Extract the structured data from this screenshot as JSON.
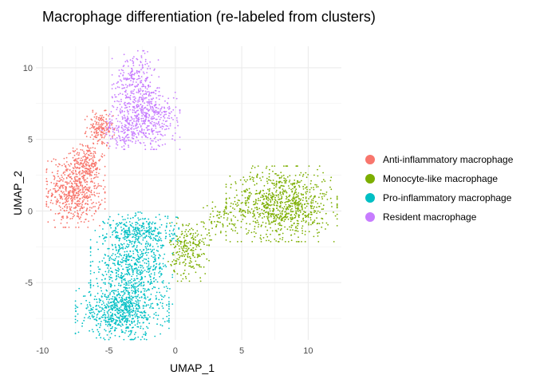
{
  "chart_data": {
    "type": "scatter",
    "title": "Macrophage differentiation (re-labeled from clusters)",
    "xlabel": "UMAP_1",
    "ylabel": "UMAP_2",
    "xlim": [
      -10.5,
      12.5
    ],
    "ylim": [
      -9,
      11.5
    ],
    "x_ticks": [
      -10,
      -5,
      0,
      5,
      10
    ],
    "y_ticks": [
      -5,
      0,
      5,
      10
    ],
    "grid": true,
    "legend_position": "right",
    "series": [
      {
        "name": "Anti-inflammatory macrophage",
        "color": "#F8766D",
        "clusters": [
          {
            "center": [
              -7.5,
              1.5
            ],
            "spread": [
              1.0,
              1.2
            ],
            "n": 650
          },
          {
            "center": [
              -5.7,
              5.7
            ],
            "spread": [
              0.5,
              0.6
            ],
            "n": 170
          },
          {
            "center": [
              -6.6,
              3.6
            ],
            "spread": [
              0.5,
              0.6
            ],
            "n": 120
          }
        ]
      },
      {
        "name": "Monocyte-like macrophage",
        "color": "#7CAE00",
        "clusters": [
          {
            "center": [
              8.0,
              0.5
            ],
            "spread": [
              1.9,
              1.2
            ],
            "n": 900
          },
          {
            "center": [
              1.0,
              -2.7
            ],
            "spread": [
              0.7,
              1.0
            ],
            "n": 230
          },
          {
            "center": [
              3.2,
              -0.7
            ],
            "spread": [
              0.9,
              0.6
            ],
            "n": 70
          }
        ]
      },
      {
        "name": "Pro-inflammatory macrophage",
        "color": "#00BFC4",
        "clusters": [
          {
            "center": [
              -4.0,
              -7.0
            ],
            "spread": [
              1.6,
              0.9
            ],
            "n": 700
          },
          {
            "center": [
              -3.3,
              -4.0
            ],
            "spread": [
              1.4,
              1.2
            ],
            "n": 600
          },
          {
            "center": [
              -2.6,
              -1.4
            ],
            "spread": [
              1.3,
              0.6
            ],
            "n": 300
          }
        ]
      },
      {
        "name": "Resident macrophage",
        "color": "#C77CFF",
        "clusters": [
          {
            "center": [
              -2.3,
              6.5
            ],
            "spread": [
              1.2,
              1.0
            ],
            "n": 520
          },
          {
            "center": [
              -3.0,
              9.2
            ],
            "spread": [
              0.8,
              0.9
            ],
            "n": 220
          },
          {
            "center": [
              -4.2,
              5.5
            ],
            "spread": [
              0.6,
              0.5
            ],
            "n": 80
          }
        ]
      }
    ]
  }
}
